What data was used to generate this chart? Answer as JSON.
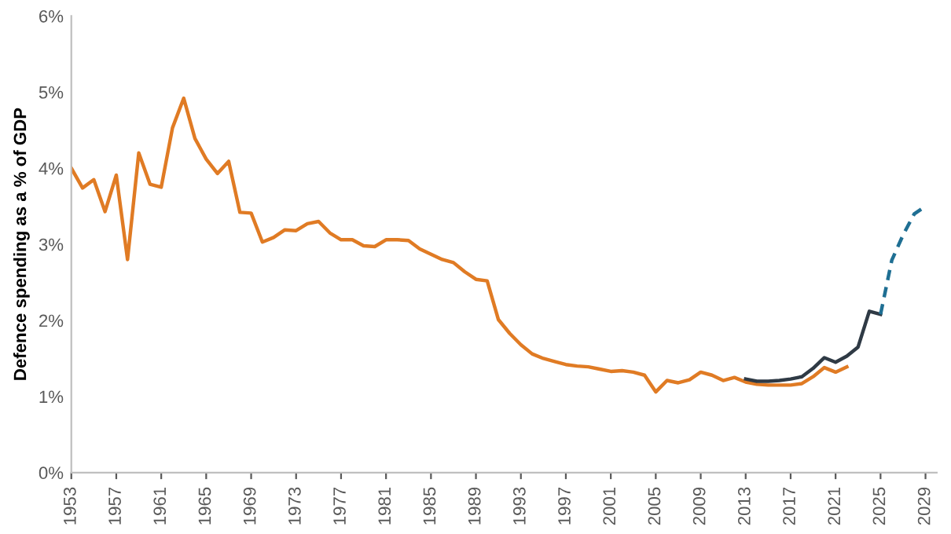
{
  "chart_data": {
    "type": "line",
    "ylabel": "Defence spending as a % of GDP",
    "xlim": [
      1953,
      2030
    ],
    "xticks": [
      1953,
      1957,
      1961,
      1965,
      1969,
      1973,
      1977,
      1981,
      1985,
      1989,
      1993,
      1997,
      2001,
      2005,
      2009,
      2013,
      2017,
      2021,
      2025,
      2029
    ],
    "ylim": [
      0,
      6
    ],
    "yticks": [
      {
        "value": 0,
        "label": "0%"
      },
      {
        "value": 1,
        "label": "1%"
      },
      {
        "value": 2,
        "label": "2%"
      },
      {
        "value": 3,
        "label": "3%"
      },
      {
        "value": 4,
        "label": "4%"
      },
      {
        "value": 5,
        "label": "5%"
      },
      {
        "value": 6,
        "label": "6%"
      }
    ],
    "grid": false,
    "marker": "none",
    "series": [
      {
        "color": "#e07b24",
        "line_style": "solid",
        "x": [
          1953,
          1954,
          1955,
          1956,
          1957,
          1958,
          1959,
          1960,
          1961,
          1962,
          1963,
          1964,
          1965,
          1966,
          1967,
          1968,
          1969,
          1970,
          1971,
          1972,
          1973,
          1974,
          1975,
          1976,
          1977,
          1978,
          1979,
          1980,
          1981,
          1982,
          1983,
          1984,
          1985,
          1986,
          1987,
          1988,
          1989,
          1990,
          1991,
          1992,
          1993,
          1994,
          1995,
          1996,
          1997,
          1998,
          1999,
          2000,
          2001,
          2002,
          2003,
          2004,
          2005,
          2006,
          2007,
          2008,
          2009,
          2010,
          2011,
          2012,
          2013,
          2014,
          2015,
          2016,
          2017,
          2018,
          2019,
          2020,
          2021,
          2022
        ],
        "values": [
          4.0,
          3.74,
          3.85,
          3.43,
          3.91,
          2.8,
          4.2,
          3.79,
          3.75,
          4.53,
          4.92,
          4.39,
          4.12,
          3.93,
          4.09,
          3.42,
          3.41,
          3.03,
          3.09,
          3.19,
          3.18,
          3.27,
          3.3,
          3.15,
          3.06,
          3.06,
          2.98,
          2.97,
          3.06,
          3.06,
          3.05,
          2.94,
          2.87,
          2.8,
          2.76,
          2.64,
          2.54,
          2.52,
          2.01,
          1.83,
          1.68,
          1.56,
          1.5,
          1.46,
          1.42,
          1.4,
          1.39,
          1.36,
          1.33,
          1.34,
          1.32,
          1.28,
          1.06,
          1.21,
          1.18,
          1.22,
          1.32,
          1.28,
          1.21,
          1.25,
          1.19,
          1.16,
          1.15,
          1.15,
          1.15,
          1.17,
          1.26,
          1.38,
          1.32,
          1.39
        ]
      },
      {
        "color": "#2f3a45",
        "line_style": "solid",
        "x": [
          2013,
          2014,
          2015,
          2016,
          2017,
          2018,
          2019,
          2020,
          2021,
          2022,
          2023,
          2024,
          2025
        ],
        "values": [
          1.23,
          1.2,
          1.2,
          1.21,
          1.23,
          1.26,
          1.37,
          1.51,
          1.45,
          1.53,
          1.65,
          2.12,
          2.08
        ]
      },
      {
        "color": "#1f6f93",
        "line_style": "dashed",
        "x": [
          2025,
          2026,
          2027,
          2028,
          2029
        ],
        "values": [
          2.08,
          2.79,
          3.12,
          3.4,
          3.5
        ]
      }
    ]
  }
}
